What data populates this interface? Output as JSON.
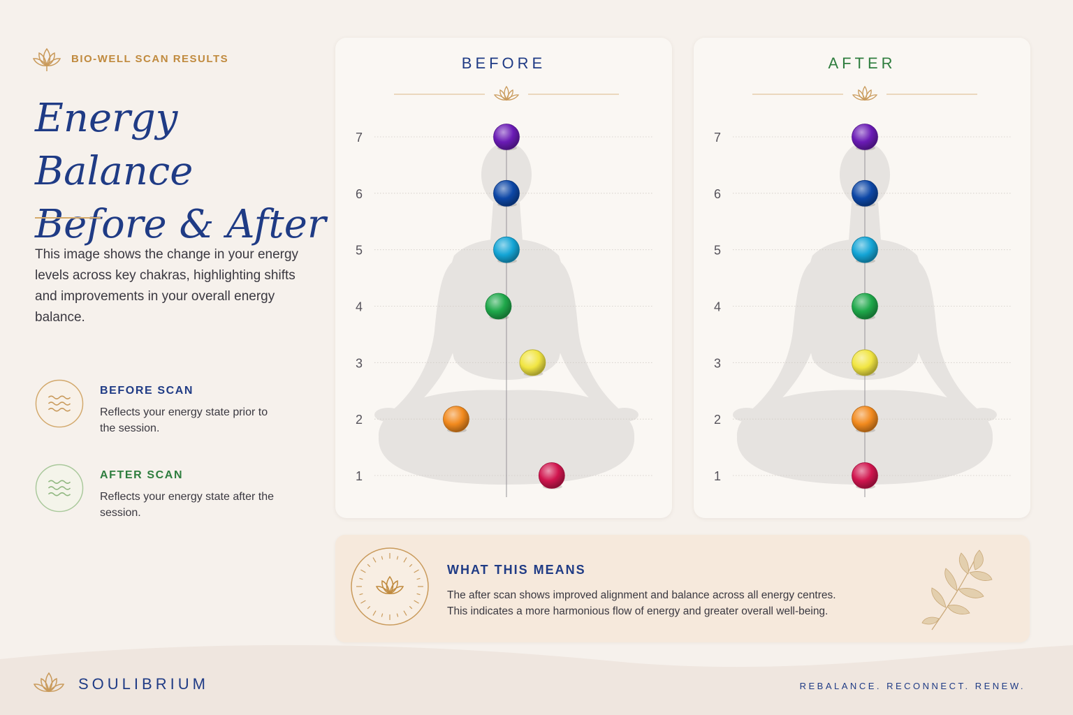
{
  "header": {
    "kicker": "BIO-WELL SCAN RESULTS",
    "title_line1": "Energy Balance",
    "title_line2": "Before & After",
    "intro": "This image shows the change in your energy levels across key chakras, highlighting shifts and improvements in your overall energy balance."
  },
  "legend": {
    "before": {
      "title": "BEFORE SCAN",
      "desc": "Reflects your energy state prior to the session.",
      "color": "#1f3b85",
      "accent": "#c08a3e"
    },
    "after": {
      "title": "AFTER SCAN",
      "desc": "Reflects your energy state after the session.",
      "color": "#2e7d3e",
      "accent": "#8fb77f"
    }
  },
  "chart_data": [
    {
      "type": "scatter",
      "title": "BEFORE",
      "title_color": "#1f3b85",
      "ylim": [
        1,
        7
      ],
      "yticks": [
        "1",
        "2",
        "3",
        "4",
        "5",
        "6",
        "7"
      ],
      "grid": true,
      "points": [
        {
          "y": 7,
          "offset": 0,
          "color": "#6a1bb5"
        },
        {
          "y": 6,
          "offset": 0,
          "color": "#0d47a6"
        },
        {
          "y": 5,
          "offset": 0,
          "color": "#14a5d6"
        },
        {
          "y": 4,
          "offset": -0.16,
          "color": "#1fa84a"
        },
        {
          "y": 3,
          "offset": 0.52,
          "color": "#f1e542"
        },
        {
          "y": 2,
          "offset": -1.0,
          "color": "#f28a1e"
        },
        {
          "y": 1,
          "offset": 0.9,
          "color": "#d0154e"
        }
      ]
    },
    {
      "type": "scatter",
      "title": "AFTER",
      "title_color": "#2e7d3e",
      "ylim": [
        1,
        7
      ],
      "yticks": [
        "1",
        "2",
        "3",
        "4",
        "5",
        "6",
        "7"
      ],
      "grid": true,
      "points": [
        {
          "y": 7,
          "offset": 0,
          "color": "#6a1bb5"
        },
        {
          "y": 6,
          "offset": 0,
          "color": "#0d47a6"
        },
        {
          "y": 5,
          "offset": 0,
          "color": "#14a5d6"
        },
        {
          "y": 4,
          "offset": 0,
          "color": "#1fa84a"
        },
        {
          "y": 3,
          "offset": 0,
          "color": "#f1e542"
        },
        {
          "y": 2,
          "offset": 0,
          "color": "#f28a1e"
        },
        {
          "y": 1,
          "offset": 0,
          "color": "#d0154e"
        }
      ]
    }
  ],
  "means": {
    "title": "WHAT THIS MEANS",
    "text_line1": "The after scan shows improved alignment and balance across all energy centres.",
    "text_line2": "This indicates a more harmonious flow of energy and greater overall well-being."
  },
  "footer": {
    "brand": "SOULIBRIUM",
    "tagline": "REBALANCE. RECONNECT. RENEW."
  },
  "icons": {
    "brand": "lotus-icon",
    "before": "wave-icon",
    "after": "wave-icon",
    "means": "lotus-sun-icon",
    "decor": "leaf-branch-icon"
  }
}
